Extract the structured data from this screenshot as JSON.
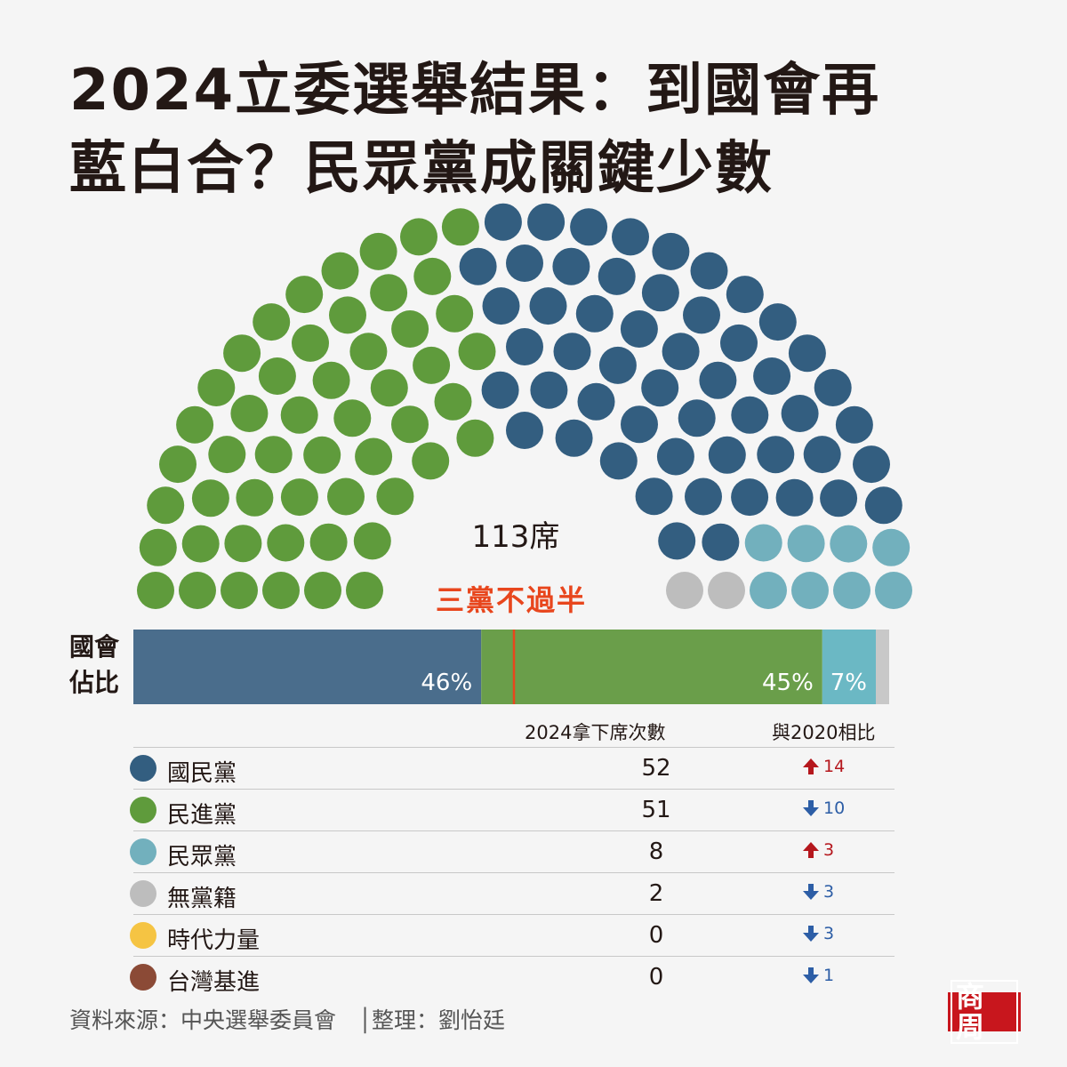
{
  "title": {
    "line1": "2024立委選舉結果：到國會再",
    "line2": "藍白合？民眾黨成關鍵少數"
  },
  "total_label": "113席",
  "majority_label": "三黨不過半",
  "share_label": {
    "line1": "國會",
    "line2": "佔比"
  },
  "table_headers": {
    "seats": "2024拿下席次數",
    "change": "與2020相比"
  },
  "colors": {
    "kmt": "#335e80",
    "dpp": "#5f9b3c",
    "tpp": "#72b0bd",
    "ind": "#bdbdbd",
    "npp": "#f5c443",
    "tsp": "#8b4a36",
    "up": "#b5171d",
    "down": "#2d5ea6",
    "majority": "#e8461d"
  },
  "chart_data": {
    "type": "parliament",
    "total_seats": 113,
    "parties": [
      {
        "name": "國民黨",
        "seats": 52,
        "change": 14,
        "direction": "up",
        "color": "#335e80",
        "share_label": "46%"
      },
      {
        "name": "民進黨",
        "seats": 51,
        "change": 10,
        "direction": "down",
        "color": "#5f9b3c",
        "share_label": "45%"
      },
      {
        "name": "民眾黨",
        "seats": 8,
        "change": 3,
        "direction": "up",
        "color": "#72b0bd",
        "share_label": "7%"
      },
      {
        "name": "無黨籍",
        "seats": 2,
        "change": 3,
        "direction": "down",
        "color": "#bdbdbd",
        "share_label": ""
      },
      {
        "name": "時代力量",
        "seats": 0,
        "change": 3,
        "direction": "down",
        "color": "#f5c443",
        "share_label": ""
      },
      {
        "name": "台灣基進",
        "seats": 0,
        "change": 1,
        "direction": "down",
        "color": "#8b4a36",
        "share_label": ""
      }
    ],
    "hemicycle_order": [
      "民進黨",
      "國民黨",
      "民眾黨",
      "無黨籍"
    ],
    "bar_order": [
      "國民黨",
      "民進黨",
      "民眾黨",
      "無黨籍"
    ]
  },
  "footer": {
    "source": "資料來源：中央選舉委員會　│整理：劉怡廷",
    "logo": "商周"
  }
}
